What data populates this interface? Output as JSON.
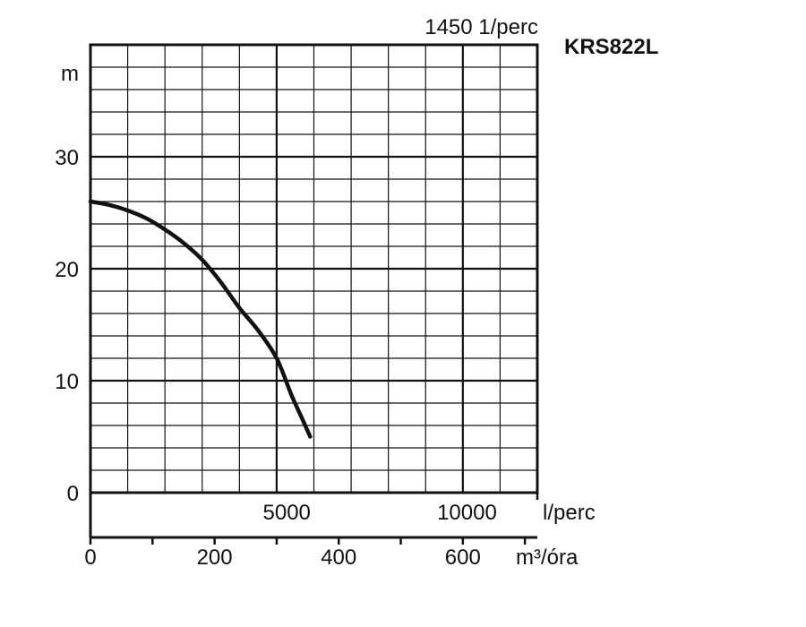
{
  "chart_data": {
    "type": "line",
    "speed_label": "1450 1/perc",
    "model_label": "KRS822L",
    "y_unit": "m",
    "y_ticks": [
      "0",
      "10",
      "20",
      "30"
    ],
    "y_tick_values": [
      0,
      10,
      20,
      30
    ],
    "ylim": [
      0,
      40
    ],
    "x_flow_unit": "l/perc",
    "x_flow_ticks": [
      "5000",
      "10000"
    ],
    "x_flow_tick_values": [
      5000,
      10000
    ],
    "xlim_flow": [
      0,
      12000
    ],
    "x_volume_unit": "m³/óra",
    "x_volume_ticks": [
      "0",
      "200",
      "400",
      "600"
    ],
    "x_volume_tick_values": [
      0,
      200,
      400,
      600
    ],
    "xlim_volume": [
      0,
      720
    ],
    "grid": true,
    "series": [
      {
        "x": [
          0,
          500,
          1000,
          1500,
          2000,
          2500,
          3000,
          3500,
          4000,
          4500,
          5000,
          5400,
          5700,
          5900
        ],
        "y": [
          26,
          25.7,
          25.2,
          24.5,
          23.5,
          22.3,
          20.8,
          18.8,
          16.5,
          14.5,
          12.0,
          8.7,
          6.5,
          5.0
        ]
      }
    ]
  }
}
